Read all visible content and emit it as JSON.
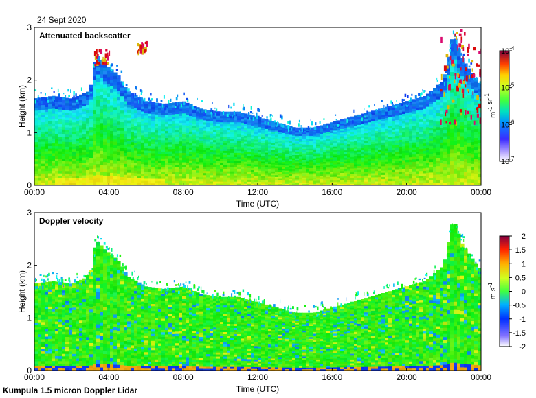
{
  "date_label": "24 Sept 2020",
  "footer_label": "Kumpula 1.5 micron Doppler Lidar",
  "chart_data": [
    {
      "type": "heatmap",
      "title": "Attenuated backscatter",
      "xlabel": "Time (UTC)",
      "ylabel": "Height (km)",
      "x_ticks": [
        "00:00",
        "04:00",
        "08:00",
        "12:00",
        "16:00",
        "20:00",
        "00:00"
      ],
      "xlim_hours": [
        0,
        24
      ],
      "ylim": [
        0,
        3
      ],
      "y_ticks": [
        0,
        1,
        2,
        3
      ],
      "colorbar": {
        "scale": "log",
        "range": [
          1e-07,
          0.0001
        ],
        "ticks": [
          {
            "value": -7,
            "mantissa": "10",
            "exp": "-7"
          },
          {
            "value": -6,
            "mantissa": "10",
            "exp": "-6"
          },
          {
            "value": -5,
            "mantissa": "10",
            "exp": "-5"
          },
          {
            "value": -4,
            "mantissa": "10",
            "exp": "-4"
          }
        ],
        "unit_parts": [
          {
            "t": "m",
            "sup": false
          },
          {
            "t": "-1",
            "sup": true
          },
          {
            "t": " sr",
            "sup": false
          },
          {
            "t": "-1",
            "sup": true
          }
        ]
      },
      "cloud_top_km": [
        [
          0.0,
          1.65
        ],
        [
          1.0,
          1.7
        ],
        [
          2.0,
          1.65
        ],
        [
          3.0,
          1.8
        ],
        [
          3.3,
          2.5
        ],
        [
          3.8,
          2.3
        ],
        [
          4.5,
          2.1
        ],
        [
          5.0,
          1.8
        ],
        [
          6.0,
          1.6
        ],
        [
          7.0,
          1.55
        ],
        [
          8.0,
          1.6
        ],
        [
          9.0,
          1.45
        ],
        [
          10.0,
          1.4
        ],
        [
          11.0,
          1.4
        ],
        [
          12.0,
          1.3
        ],
        [
          13.0,
          1.2
        ],
        [
          14.0,
          1.1
        ],
        [
          15.0,
          1.1
        ],
        [
          16.0,
          1.2
        ],
        [
          17.0,
          1.3
        ],
        [
          18.0,
          1.4
        ],
        [
          19.0,
          1.5
        ],
        [
          20.0,
          1.6
        ],
        [
          21.0,
          1.7
        ],
        [
          22.0,
          2.0
        ],
        [
          22.5,
          2.9
        ],
        [
          23.0,
          2.4
        ],
        [
          24.0,
          1.9
        ]
      ],
      "features": [
        {
          "name": "aerosol-layer-04h",
          "time_hours": [
            3.2,
            4.0
          ],
          "height_km": [
            2.3,
            2.6
          ]
        },
        {
          "name": "aerosol-layer-06h",
          "time_hours": [
            5.5,
            6.0
          ],
          "height_km": [
            2.55,
            2.75
          ]
        },
        {
          "name": "cloud-22h",
          "time_hours": [
            21.8,
            24.0
          ],
          "height_km": [
            1.2,
            3.0
          ]
        }
      ]
    },
    {
      "type": "heatmap",
      "title": "Doppler velocity",
      "xlabel": "Time (UTC)",
      "ylabel": "Height (km)",
      "x_ticks": [
        "00:00",
        "04:00",
        "08:00",
        "12:00",
        "16:00",
        "20:00",
        "00:00"
      ],
      "xlim_hours": [
        0,
        24
      ],
      "ylim": [
        0,
        3
      ],
      "y_ticks": [
        0,
        1,
        2,
        3
      ],
      "colorbar": {
        "scale": "linear",
        "range": [
          -2,
          2
        ],
        "ticks": [
          "-2",
          "-1.5",
          "-1",
          "-0.5",
          "0",
          "0.5",
          "1",
          "1.5",
          "2"
        ],
        "unit_parts": [
          {
            "t": "m s",
            "sup": false
          },
          {
            "t": "-1",
            "sup": true
          }
        ]
      },
      "cloud_top_km": [
        [
          0.0,
          1.65
        ],
        [
          1.0,
          1.7
        ],
        [
          2.0,
          1.65
        ],
        [
          3.0,
          1.8
        ],
        [
          3.3,
          2.5
        ],
        [
          3.8,
          2.3
        ],
        [
          4.5,
          2.1
        ],
        [
          5.0,
          1.8
        ],
        [
          6.0,
          1.6
        ],
        [
          7.0,
          1.55
        ],
        [
          8.0,
          1.6
        ],
        [
          9.0,
          1.45
        ],
        [
          10.0,
          1.4
        ],
        [
          11.0,
          1.4
        ],
        [
          12.0,
          1.3
        ],
        [
          13.0,
          1.2
        ],
        [
          14.0,
          1.1
        ],
        [
          15.0,
          1.1
        ],
        [
          16.0,
          1.2
        ],
        [
          17.0,
          1.3
        ],
        [
          18.0,
          1.4
        ],
        [
          19.0,
          1.5
        ],
        [
          20.0,
          1.6
        ],
        [
          21.0,
          1.7
        ],
        [
          22.0,
          2.0
        ],
        [
          22.5,
          2.9
        ],
        [
          23.0,
          2.4
        ],
        [
          24.0,
          1.9
        ]
      ]
    }
  ]
}
